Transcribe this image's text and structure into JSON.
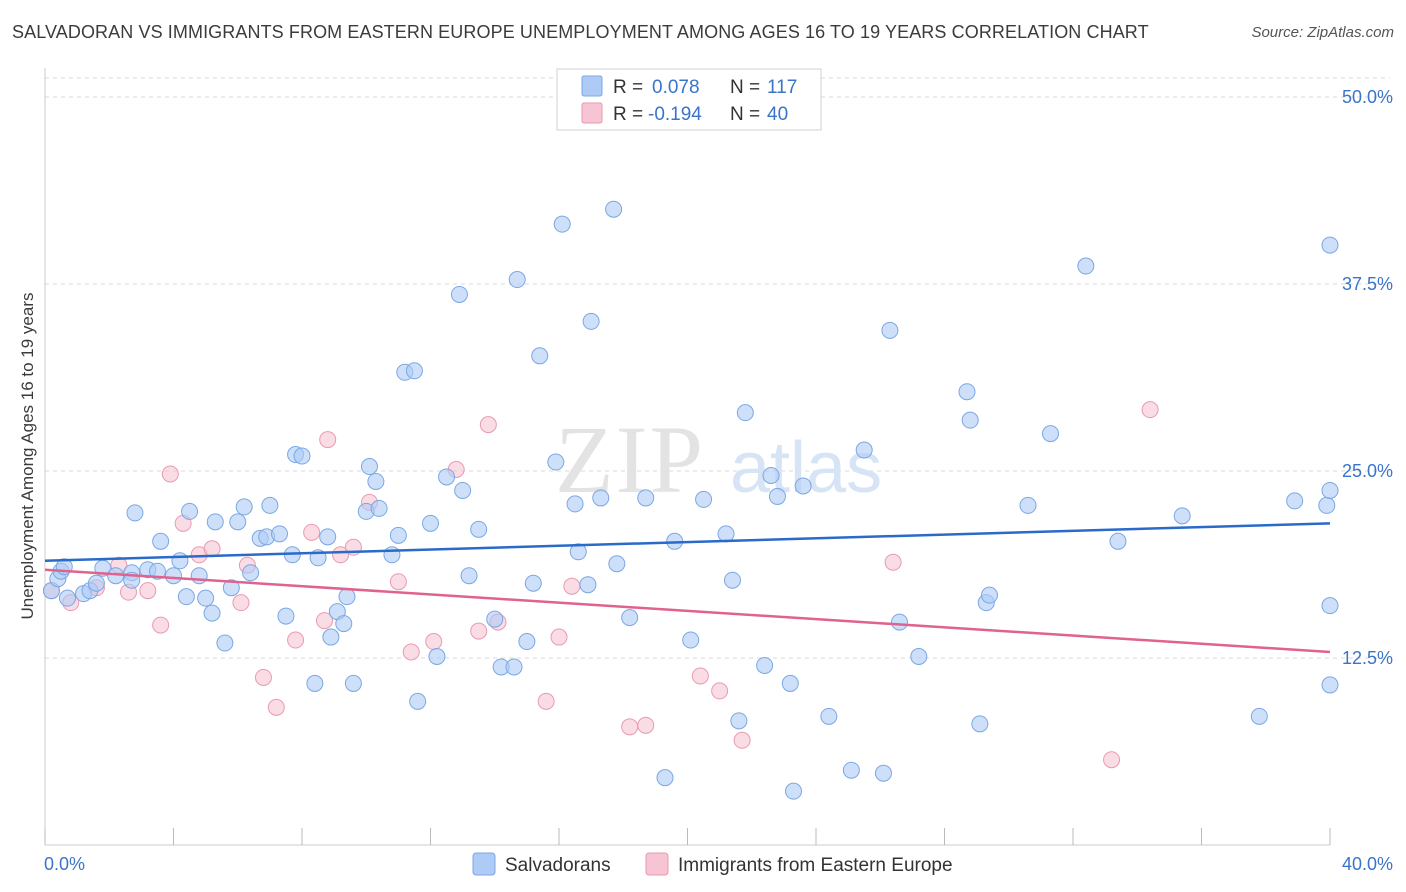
{
  "title": "SALVADORAN VS IMMIGRANTS FROM EASTERN EUROPE UNEMPLOYMENT AMONG AGES 16 TO 19 YEARS CORRELATION CHART",
  "source": "Source: ZipAtlas.com",
  "watermark": {
    "zip": "ZIP",
    "atlas": "atlas"
  },
  "colors": {
    "blue_fill": "#aecbf5",
    "blue_stroke": "#7aa7e3",
    "blue_line": "#2a6ac9",
    "pink_fill": "#f7c4d3",
    "pink_stroke": "#e99ab2",
    "pink_line": "#e0628e",
    "value_text": "#3a74c9",
    "grid": "#d8d8d8"
  },
  "legend_top": [
    {
      "r_label": "R =",
      "r_value": "0.078",
      "n_label": "N =",
      "n_value": "117"
    },
    {
      "r_label": "R =",
      "r_value": "-0.194",
      "n_label": "N =",
      "n_value": "40"
    }
  ],
  "chart_data": {
    "type": "scatter",
    "title": "SALVADORAN VS IMMIGRANTS FROM EASTERN EUROPE UNEMPLOYMENT AMONG AGES 16 TO 19 YEARS CORRELATION CHART",
    "xlabel": "",
    "ylabel": "Unemployment Among Ages 16 to 19 years",
    "xlim": [
      0,
      40
    ],
    "ylim": [
      0,
      50
    ],
    "x_tick_labels": [
      "0.0%",
      "40.0%"
    ],
    "y_ticks": [
      12.5,
      25.0,
      37.5,
      50.0
    ],
    "y_tick_labels": [
      "12.5%",
      "25.0%",
      "37.5%",
      "50.0%"
    ],
    "grid": "horizontal dashed",
    "legend_position": "bottom-center",
    "series": [
      {
        "name": "Salvadorans",
        "r": 0.078,
        "n": 117,
        "trend": {
          "x": [
            0,
            40
          ],
          "y": [
            19.0,
            21.5
          ]
        },
        "points": [
          [
            0.2,
            17.0
          ],
          [
            0.4,
            17.8
          ],
          [
            0.5,
            18.3
          ],
          [
            0.6,
            18.6
          ],
          [
            0.7,
            16.5
          ],
          [
            1.2,
            16.8
          ],
          [
            1.4,
            17.0
          ],
          [
            1.6,
            17.5
          ],
          [
            1.8,
            18.5
          ],
          [
            2.2,
            18.0
          ],
          [
            2.7,
            18.2
          ],
          [
            2.7,
            17.7
          ],
          [
            2.8,
            22.2
          ],
          [
            3.2,
            18.4
          ],
          [
            3.5,
            18.3
          ],
          [
            3.6,
            20.3
          ],
          [
            4.0,
            18.0
          ],
          [
            4.2,
            19.0
          ],
          [
            4.4,
            16.6
          ],
          [
            4.5,
            22.3
          ],
          [
            4.8,
            18.0
          ],
          [
            5.0,
            16.5
          ],
          [
            5.2,
            15.5
          ],
          [
            5.3,
            21.6
          ],
          [
            5.6,
            13.5
          ],
          [
            5.8,
            17.2
          ],
          [
            6.0,
            21.6
          ],
          [
            6.2,
            22.6
          ],
          [
            6.4,
            18.2
          ],
          [
            6.7,
            20.5
          ],
          [
            6.9,
            20.6
          ],
          [
            7.0,
            22.7
          ],
          [
            7.3,
            20.8
          ],
          [
            7.5,
            15.3
          ],
          [
            7.7,
            19.4
          ],
          [
            7.8,
            26.1
          ],
          [
            8.0,
            26.0
          ],
          [
            8.4,
            10.8
          ],
          [
            8.5,
            19.2
          ],
          [
            8.8,
            20.6
          ],
          [
            8.9,
            13.9
          ],
          [
            9.1,
            15.6
          ],
          [
            9.3,
            14.8
          ],
          [
            9.4,
            16.6
          ],
          [
            9.6,
            10.8
          ],
          [
            10.0,
            22.3
          ],
          [
            10.1,
            25.3
          ],
          [
            10.3,
            24.3
          ],
          [
            10.4,
            22.5
          ],
          [
            10.8,
            19.4
          ],
          [
            11.0,
            20.7
          ],
          [
            11.2,
            31.6
          ],
          [
            11.5,
            31.7
          ],
          [
            11.6,
            9.6
          ],
          [
            12.0,
            21.5
          ],
          [
            12.2,
            12.6
          ],
          [
            12.5,
            24.6
          ],
          [
            12.9,
            36.8
          ],
          [
            13.0,
            23.7
          ],
          [
            13.2,
            18.0
          ],
          [
            13.5,
            21.1
          ],
          [
            14.0,
            15.1
          ],
          [
            14.2,
            11.9
          ],
          [
            14.6,
            11.9
          ],
          [
            14.7,
            37.8
          ],
          [
            15.0,
            13.6
          ],
          [
            15.2,
            17.5
          ],
          [
            15.4,
            32.7
          ],
          [
            15.9,
            25.6
          ],
          [
            16.1,
            41.5
          ],
          [
            16.5,
            22.8
          ],
          [
            16.6,
            19.6
          ],
          [
            16.9,
            17.4
          ],
          [
            17.0,
            35.0
          ],
          [
            17.3,
            23.2
          ],
          [
            17.7,
            42.5
          ],
          [
            17.8,
            18.8
          ],
          [
            18.2,
            15.2
          ],
          [
            18.7,
            23.2
          ],
          [
            19.3,
            4.5
          ],
          [
            19.6,
            20.3
          ],
          [
            20.1,
            13.7
          ],
          [
            20.5,
            23.1
          ],
          [
            21.2,
            20.8
          ],
          [
            21.4,
            17.7
          ],
          [
            21.6,
            8.3
          ],
          [
            21.8,
            28.9
          ],
          [
            22.4,
            12.0
          ],
          [
            22.6,
            24.7
          ],
          [
            22.8,
            23.3
          ],
          [
            23.2,
            10.8
          ],
          [
            23.3,
            3.6
          ],
          [
            23.6,
            24.0
          ],
          [
            24.4,
            8.6
          ],
          [
            25.1,
            5.0
          ],
          [
            25.5,
            26.4
          ],
          [
            26.1,
            4.8
          ],
          [
            26.3,
            34.4
          ],
          [
            26.6,
            14.9
          ],
          [
            27.2,
            12.6
          ],
          [
            28.7,
            30.3
          ],
          [
            28.8,
            28.4
          ],
          [
            29.1,
            8.1
          ],
          [
            29.3,
            16.2
          ],
          [
            29.4,
            16.7
          ],
          [
            30.6,
            22.7
          ],
          [
            31.3,
            27.5
          ],
          [
            32.4,
            38.7
          ],
          [
            33.4,
            20.3
          ],
          [
            35.4,
            22.0
          ],
          [
            37.8,
            8.6
          ],
          [
            38.9,
            23.0
          ],
          [
            40.0,
            40.1
          ],
          [
            39.9,
            22.7
          ],
          [
            40.0,
            23.7
          ],
          [
            40.0,
            10.7
          ],
          [
            40.0,
            16.0
          ]
        ]
      },
      {
        "name": "Immigrants from Eastern Europe",
        "r": -0.194,
        "n": 40,
        "trend": {
          "x": [
            0,
            40
          ],
          "y": [
            18.4,
            12.9
          ]
        },
        "points": [
          [
            0.2,
            17.0
          ],
          [
            0.8,
            16.2
          ],
          [
            1.6,
            17.2
          ],
          [
            2.3,
            18.7
          ],
          [
            2.6,
            16.9
          ],
          [
            3.2,
            17.0
          ],
          [
            3.6,
            14.7
          ],
          [
            3.9,
            24.8
          ],
          [
            4.3,
            21.5
          ],
          [
            4.8,
            19.4
          ],
          [
            5.2,
            19.8
          ],
          [
            6.1,
            16.2
          ],
          [
            6.3,
            18.7
          ],
          [
            6.8,
            11.2
          ],
          [
            7.2,
            9.2
          ],
          [
            7.8,
            13.7
          ],
          [
            8.3,
            20.9
          ],
          [
            8.7,
            15.0
          ],
          [
            8.8,
            27.1
          ],
          [
            9.2,
            19.4
          ],
          [
            9.6,
            19.9
          ],
          [
            10.1,
            22.9
          ],
          [
            11.0,
            17.6
          ],
          [
            11.4,
            12.9
          ],
          [
            12.1,
            13.6
          ],
          [
            12.8,
            25.1
          ],
          [
            13.5,
            14.3
          ],
          [
            13.8,
            28.1
          ],
          [
            14.1,
            14.9
          ],
          [
            15.6,
            9.6
          ],
          [
            16.0,
            13.9
          ],
          [
            16.4,
            17.3
          ],
          [
            18.2,
            7.9
          ],
          [
            18.7,
            8.0
          ],
          [
            20.4,
            11.3
          ],
          [
            21.0,
            10.3
          ],
          [
            21.7,
            7.0
          ],
          [
            26.4,
            18.9
          ],
          [
            33.2,
            5.7
          ],
          [
            34.4,
            29.1
          ]
        ]
      }
    ]
  },
  "bottom_legend": [
    {
      "label": "Salvadorans"
    },
    {
      "label": "Immigrants from Eastern Europe"
    }
  ]
}
